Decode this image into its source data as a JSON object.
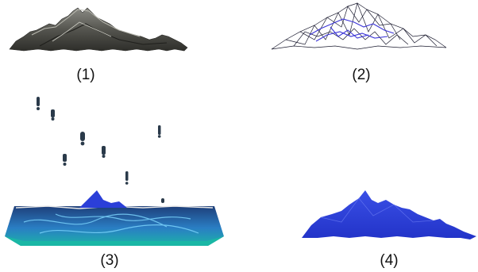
{
  "panels": [
    {
      "id": 1,
      "label": "(1)",
      "content": "textured-rock-mountain"
    },
    {
      "id": 2,
      "label": "(2)",
      "content": "wireframe-mountain-mesh"
    },
    {
      "id": 3,
      "label": "(3)",
      "content": "water-basin-with-falling-drops"
    },
    {
      "id": 4,
      "label": "(4)",
      "content": "solid-blue-mountain"
    }
  ],
  "colors": {
    "rock_dark": "#3a3a36",
    "rock_light": "#9a9a92",
    "wire_black": "#1a1a2e",
    "wire_blue": "#3b35d6",
    "water_teal": "#19b0a6",
    "water_blue": "#1e63c9",
    "mountain_blue": "#2b3fd8",
    "drop_dark": "#2a3a4a"
  }
}
